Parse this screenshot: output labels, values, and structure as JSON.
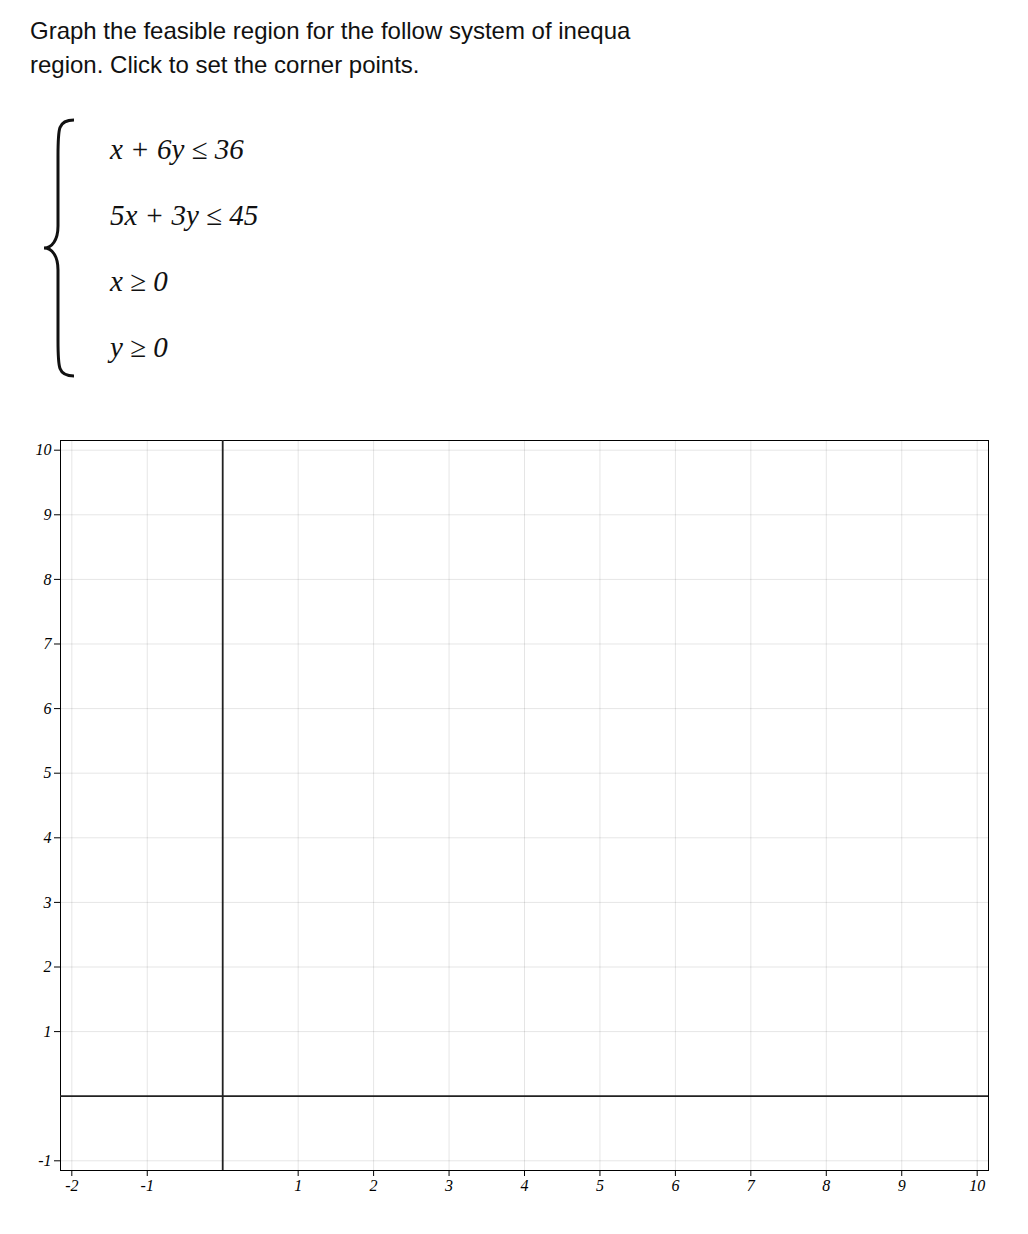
{
  "chart_data": {
    "type": "scatter",
    "title": "Graph the feasible region for the follow system of inequa",
    "subtitle": "region. Click to set the corner points.",
    "annotations": [
      "x + 6y ≤ 36",
      "5x + 3y ≤ 45",
      "x ≥ 0",
      "y ≥ 0"
    ],
    "x": [],
    "values": [],
    "xlim": [
      -2.15,
      10.15
    ],
    "ylim": [
      -1.15,
      10.15
    ],
    "xticks": [
      -2,
      -1,
      1,
      2,
      3,
      4,
      5,
      6,
      7,
      8,
      9,
      10
    ],
    "yticks": [
      -1,
      1,
      2,
      3,
      4,
      5,
      6,
      7,
      8,
      9,
      10
    ],
    "grid": true
  }
}
